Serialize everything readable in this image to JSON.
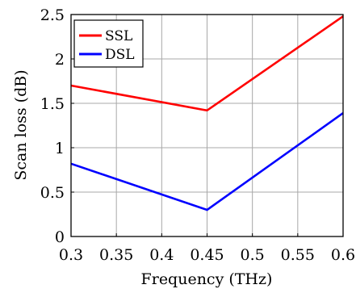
{
  "chart_data": {
    "type": "line",
    "xlabel": "Frequency (THz)",
    "ylabel": "Scan loss (dB)",
    "xlim": [
      0.3,
      0.6
    ],
    "ylim": [
      0,
      2.5
    ],
    "xticks": [
      "0.3",
      "0.35",
      "0.4",
      "0.45",
      "0.5",
      "0.55",
      "0.6"
    ],
    "yticks": [
      "0",
      "0.5",
      "1",
      "1.5",
      "2",
      "2.5"
    ],
    "grid": true,
    "legend_position": "top-left",
    "series": [
      {
        "name": "SSL",
        "color": "#ff0000",
        "x": [
          0.3,
          0.45,
          0.6
        ],
        "y": [
          1.7,
          1.42,
          2.48
        ]
      },
      {
        "name": "DSL",
        "color": "#0000ff",
        "x": [
          0.3,
          0.45,
          0.6
        ],
        "y": [
          0.82,
          0.3,
          1.39
        ]
      }
    ]
  }
}
